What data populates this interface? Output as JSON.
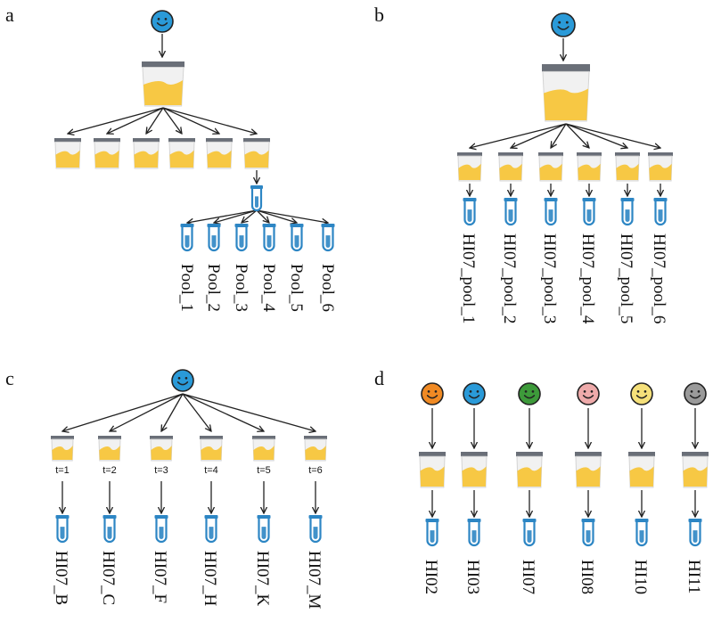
{
  "panels": {
    "a": {
      "letter": "a",
      "pools": [
        "Pool_1",
        "Pool_2",
        "Pool_3",
        "Pool_4",
        "Pool_5",
        "Pool_6"
      ]
    },
    "b": {
      "letter": "b",
      "pools": [
        "HI07_pool_1",
        "HI07_pool_2",
        "HI07_pool_3",
        "HI07_pool_4",
        "HI07_pool_5",
        "HI07_pool_6"
      ]
    },
    "c": {
      "letter": "c",
      "times": [
        "t=1",
        "t=2",
        "t=3",
        "t=4",
        "t=5",
        "t=6"
      ],
      "samples": [
        "HI07_B",
        "HI07_C",
        "HI07_F",
        "HI07_H",
        "HI07_K",
        "HI07_M"
      ]
    },
    "d": {
      "letter": "d",
      "donors": [
        "HI02",
        "HI03",
        "HI07",
        "HI08",
        "HI10",
        "HI11"
      ],
      "donor_colors": [
        "#f08a24",
        "#2a9ad8",
        "#3d9a3a",
        "#eeaaaa",
        "#f5e07a",
        "#9a9a9a"
      ]
    }
  },
  "colors": {
    "smiley_blue": "#2a9ad8",
    "urine": "#f7c844",
    "lid": "#6a6f78",
    "tube": "#2d86c4"
  },
  "icons": [
    "smiley-icon",
    "urine-cup-icon",
    "test-tube-icon",
    "arrow-icon"
  ]
}
